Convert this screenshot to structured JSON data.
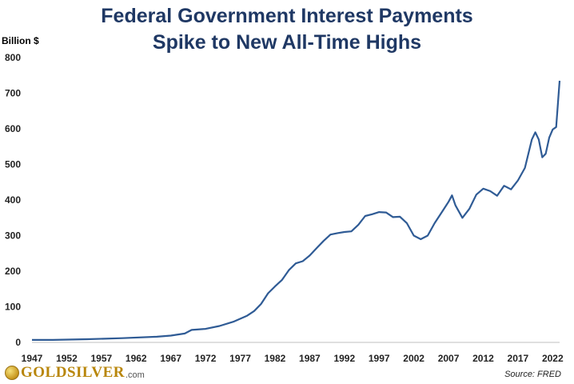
{
  "chart_data": {
    "type": "line",
    "title_line1": "Federal Government Interest Payments",
    "title_line2": "Spike to New All-Time Highs",
    "ylabel": "Billion $",
    "xlabel": "",
    "ylim": [
      0,
      800
    ],
    "yticks": [
      0,
      100,
      200,
      300,
      400,
      500,
      600,
      700,
      800
    ],
    "xlim": [
      1947,
      2023
    ],
    "xticks": [
      1947,
      1952,
      1957,
      1962,
      1967,
      1972,
      1977,
      1982,
      1987,
      1992,
      1997,
      2002,
      2007,
      2012,
      2017,
      2022
    ],
    "grid": false,
    "line_color": "#2f5b95",
    "source": "Source: FRED",
    "series": [
      {
        "name": "Federal Government Interest Payments",
        "x": [
          1947,
          1950,
          1955,
          1960,
          1965,
          1967,
          1969,
          1970,
          1972,
          1974,
          1976,
          1978,
          1979,
          1980,
          1981,
          1982,
          1983,
          1984,
          1985,
          1986,
          1987,
          1988,
          1989,
          1990,
          1991,
          1992,
          1993,
          1994,
          1995,
          1996,
          1997,
          1998,
          1999,
          2000,
          2001,
          2002,
          2003,
          2004,
          2005,
          2006,
          2007,
          2007.5,
          2008,
          2009,
          2010,
          2011,
          2012,
          2013,
          2014,
          2015,
          2016,
          2017,
          2018,
          2019,
          2019.5,
          2020,
          2020.5,
          2021,
          2021.5,
          2022,
          2022.5,
          2023
        ],
        "values": [
          7,
          7,
          9,
          12,
          16,
          19,
          25,
          35,
          38,
          46,
          58,
          75,
          88,
          108,
          138,
          157,
          175,
          203,
          222,
          228,
          244,
          265,
          285,
          303,
          307,
          310,
          312,
          330,
          355,
          360,
          366,
          365,
          352,
          353,
          335,
          300,
          290,
          300,
          335,
          365,
          395,
          413,
          385,
          350,
          375,
          415,
          432,
          425,
          412,
          440,
          430,
          455,
          490,
          570,
          590,
          570,
          520,
          530,
          575,
          598,
          605,
          735
        ]
      }
    ]
  }
}
